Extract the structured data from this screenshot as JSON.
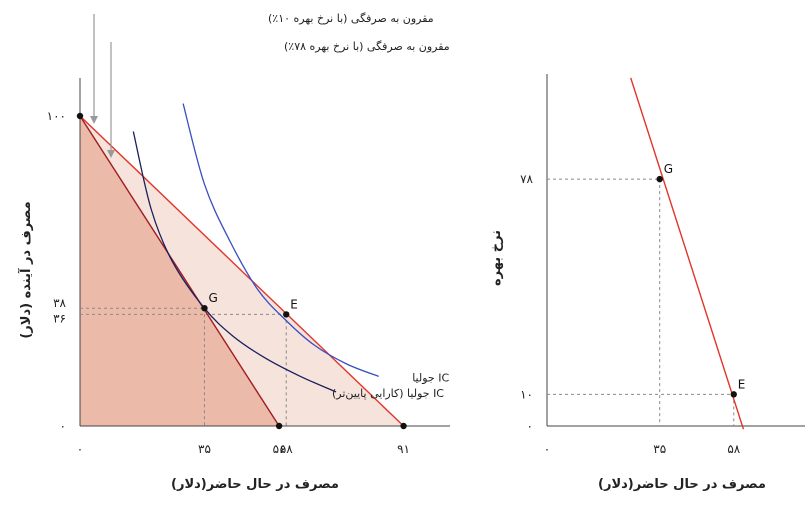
{
  "chart_data": [
    {
      "type": "line",
      "xlabel": "مصرف در حال حاضر(دلار)",
      "ylabel": "مصرف در آینده (دلار)",
      "xlim": [
        0,
        100
      ],
      "ylim": [
        0,
        100
      ],
      "x_ticks": [
        {
          "value": 0,
          "label": "۰"
        },
        {
          "value": 35,
          "label": "۳۵"
        },
        {
          "value": 56,
          "label": "۵۶"
        },
        {
          "value": 58,
          "label": "۵۸"
        },
        {
          "value": 91,
          "label": "۹۱"
        }
      ],
      "y_ticks": [
        {
          "value": 0,
          "label": "۰"
        },
        {
          "value": 36,
          "label": "۳۶"
        },
        {
          "value": 38,
          "label": "۳۸"
        },
        {
          "value": 100,
          "label": "۱۰۰"
        }
      ],
      "frontiers": [
        {
          "name": "مقرون به صرفگی (با نرخ بهره ۱۰٪)",
          "from": [
            0,
            100
          ],
          "to": [
            91,
            0
          ]
        },
        {
          "name": "مقرون به صرفگی (با نرخ بهره ۷۸٪)",
          "from": [
            0,
            100
          ],
          "to": [
            56,
            0
          ]
        }
      ],
      "indifference_curves": [
        {
          "name": "IC جولیا",
          "points": [
            [
              29,
              104
            ],
            [
              35,
              78
            ],
            [
              42,
              60
            ],
            [
              50,
              44
            ],
            [
              58,
              34
            ],
            [
              66,
              26
            ],
            [
              75,
              20
            ],
            [
              84,
              16
            ]
          ]
        },
        {
          "name": "IC جولیا (کارایی پایین‌تر)",
          "points": [
            [
              15,
              95
            ],
            [
              20,
              70
            ],
            [
              26,
              53
            ],
            [
              35,
              38
            ],
            [
              43,
              29
            ],
            [
              52,
              22
            ],
            [
              62,
              16
            ],
            [
              72,
              11
            ]
          ]
        }
      ],
      "points": [
        {
          "label": "G",
          "x": 35,
          "y": 38
        },
        {
          "label": "E",
          "x": 58,
          "y": 36
        },
        {
          "label": "",
          "x": 0,
          "y": 100
        },
        {
          "label": "",
          "x": 56,
          "y": 0
        },
        {
          "label": "",
          "x": 91,
          "y": 0
        }
      ]
    },
    {
      "type": "line",
      "xlabel": "مصرف در حال حاضر(دلار)",
      "ylabel": "نرخ بهره",
      "xlim": [
        0,
        100
      ],
      "ylim": [
        0,
        100
      ],
      "x_ticks": [
        {
          "value": 0,
          "label": "۰"
        },
        {
          "value": 35,
          "label": "۳۵"
        },
        {
          "value": 58,
          "label": "۵۸"
        }
      ],
      "y_ticks": [
        {
          "value": 0,
          "label": "۰"
        },
        {
          "value": 10,
          "label": "۱۰"
        },
        {
          "value": 78,
          "label": "۷۸"
        }
      ],
      "series": [
        {
          "name": "",
          "points": [
            [
              26,
              110
            ],
            [
              61,
              -1
            ]
          ]
        }
      ],
      "points": [
        {
          "label": "G",
          "x": 35,
          "y": 78
        },
        {
          "label": "E",
          "x": 58,
          "y": 10
        }
      ]
    }
  ],
  "colors": {
    "red_line": "#e2352a",
    "dark_red_line": "#a11c22",
    "navy_curve": "#1a1f5c",
    "blue_curve": "#3a4ec0",
    "fill_light": "#f5e3dc",
    "fill_dark": "#ecbaa8",
    "axis": "#444444",
    "guide": "#8a8a8a",
    "annotation_arrow": "#999999"
  }
}
